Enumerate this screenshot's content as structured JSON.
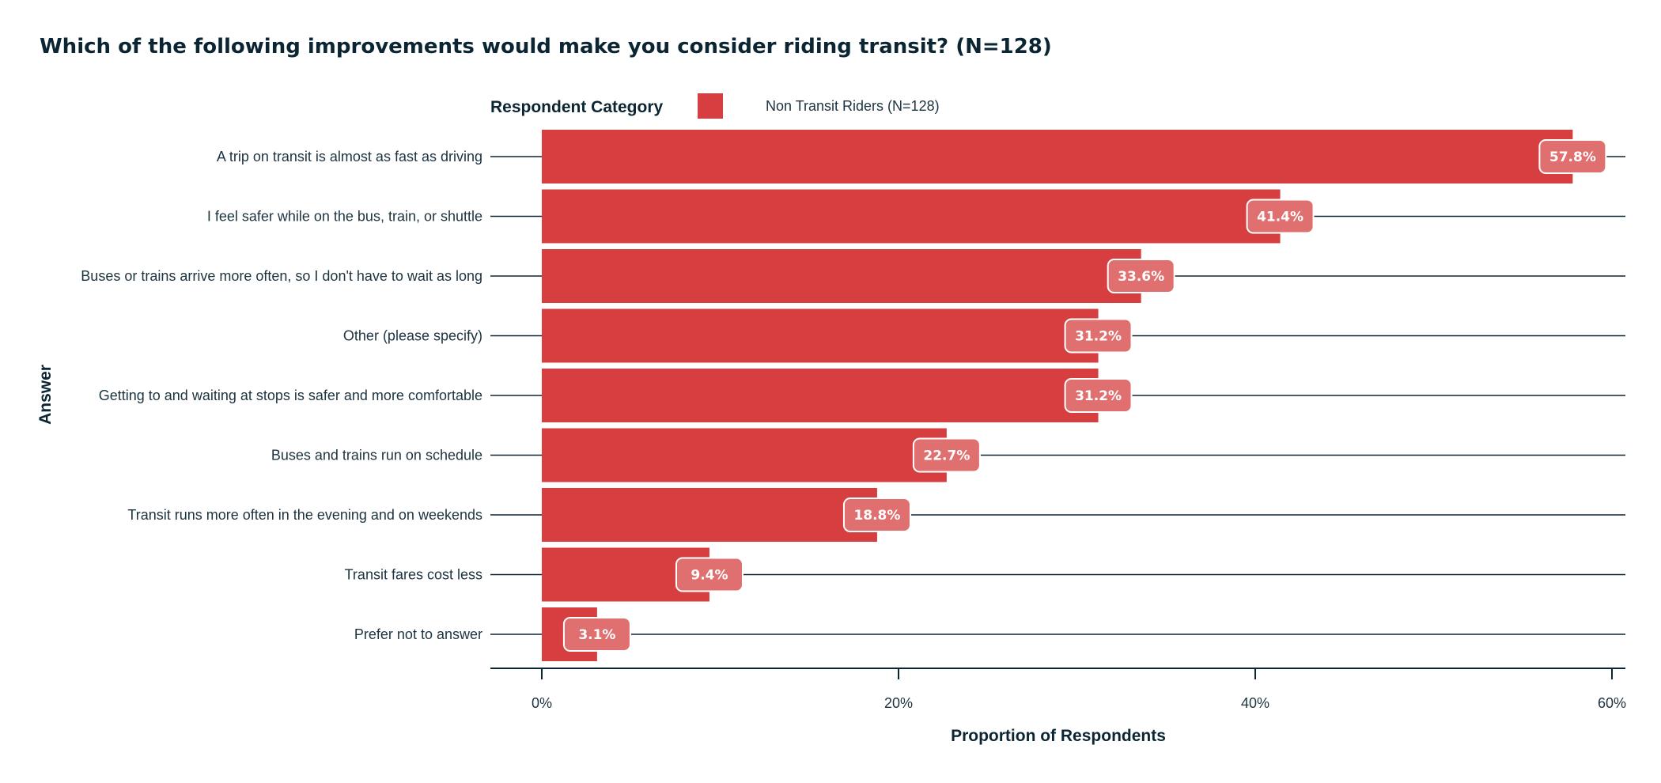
{
  "chart_data": {
    "type": "bar",
    "orientation": "horizontal",
    "title": "Which of the following improvements would make you consider riding transit? (N=128)",
    "xlabel": "Proportion of Respondents",
    "ylabel": "Answer",
    "xlim": [
      0,
      60
    ],
    "x_ticks": [
      0,
      20,
      40,
      60
    ],
    "x_tick_labels": [
      "0%",
      "20%",
      "40%",
      "60%"
    ],
    "legend": {
      "title": "Respondent Category",
      "placement": "top",
      "entries": [
        "Non Transit Riders (N=128)"
      ]
    },
    "categories": [
      "A trip on transit is almost as fast as driving",
      "I feel safer while on the bus, train, or shuttle",
      "Buses or trains arrive more often, so I don't have to wait as long",
      "Other (please specify)",
      "Getting to and waiting at stops is safer and more comfortable",
      "Buses and trains run on schedule",
      "Transit runs more often in the evening and on weekends",
      "Transit fares cost less",
      "Prefer not to answer"
    ],
    "series": [
      {
        "name": "Non Transit Riders (N=128)",
        "color": "#d73e3f",
        "values": [
          57.8,
          41.4,
          33.6,
          31.2,
          31.2,
          22.7,
          18.8,
          9.4,
          3.1
        ],
        "labels": [
          "57.8%",
          "41.4%",
          "33.6%",
          "31.2%",
          "31.2%",
          "22.7%",
          "18.8%",
          "9.4%",
          "3.1%"
        ]
      }
    ],
    "grid": "category-lines"
  }
}
